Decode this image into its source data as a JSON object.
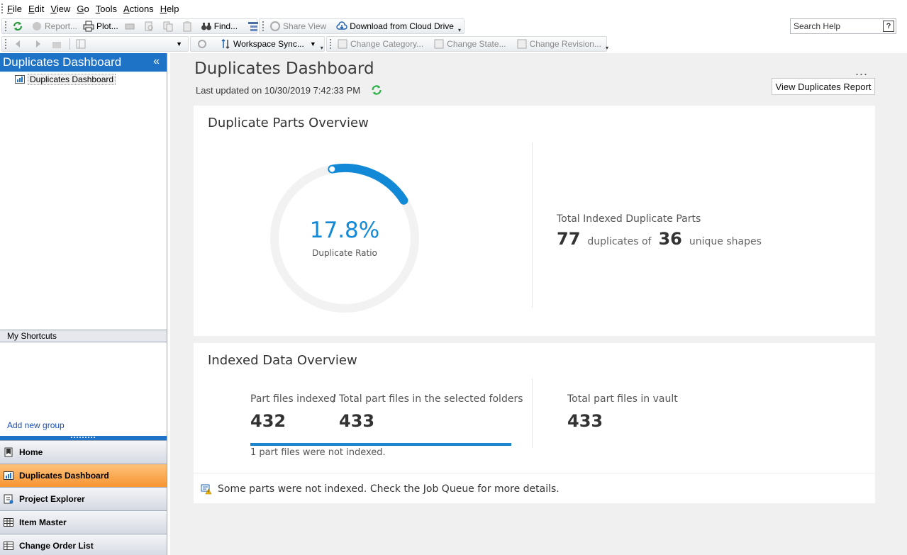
{
  "menu": {
    "items": [
      {
        "u": "F",
        "rest": "ile"
      },
      {
        "u": "E",
        "rest": "dit"
      },
      {
        "u": "V",
        "rest": "iew"
      },
      {
        "u": "G",
        "rest": "o"
      },
      {
        "u": "T",
        "rest": "ools"
      },
      {
        "u": "A",
        "rest": "ctions"
      },
      {
        "u": "H",
        "rest": "elp"
      }
    ]
  },
  "toolbar": {
    "report": "Report...",
    "plot": "Plot...",
    "find": "Find...",
    "share_view": "Share View",
    "download": "Download from Cloud Drive",
    "workspace_sync": "Workspace Sync...",
    "change_category": "Change Category...",
    "change_state": "Change State...",
    "change_revision": "Change Revision..."
  },
  "search": {
    "placeholder": "Search Help",
    "help": "?"
  },
  "left_pane": {
    "title": "Duplicates Dashboard",
    "collapse": "«",
    "tree_item": "Duplicates Dashboard",
    "shortcuts_header": "My Shortcuts",
    "add_group": "Add new group",
    "nav": [
      "Home",
      "Duplicates Dashboard",
      "Project Explorer",
      "Item Master",
      "Change Order List"
    ]
  },
  "main": {
    "title": "Duplicates Dashboard",
    "last_updated": "Last updated on 10/30/2019 7:42:33 PM",
    "more": "...",
    "report_button": "View Duplicates Report",
    "overview": {
      "title": "Duplicate Parts Overview",
      "ratio_value": "17.8%",
      "ratio_fraction": 0.178,
      "ratio_label": "Duplicate Ratio",
      "total_label": "Total Indexed Duplicate Parts",
      "duplicates": "77",
      "duplicates_of": "duplicates of",
      "unique": "36",
      "unique_label": "unique shapes"
    },
    "indexed": {
      "title": "Indexed Data Overview",
      "indexed_label": "Part files indexed",
      "slash": "/",
      "total_label": "Total part files in the selected folders",
      "indexed_value": "432",
      "total_value": "433",
      "not_indexed": "1 part files were not indexed.",
      "vault_label": "Total part files in vault",
      "vault_value": "433"
    },
    "warning": "Some parts were not indexed. Check the Job Queue for more details."
  },
  "colors": {
    "accent": "#1189d6",
    "header_blue": "#1e73c6",
    "active_nav": "#f79532",
    "refresh_green": "#2db24a"
  }
}
